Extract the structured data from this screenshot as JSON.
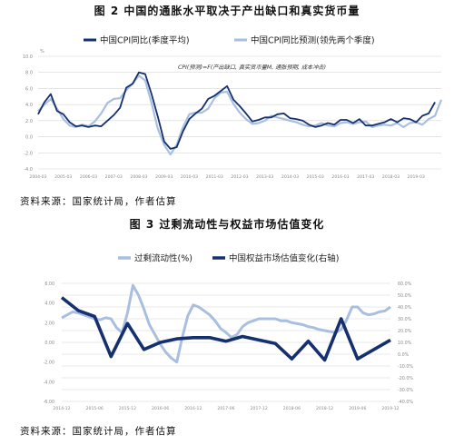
{
  "figure1": {
    "title": "图 2  中国的通胀水平取决于产出缺口和真实货币量",
    "source": "资料来源：国家统计局，作者估算",
    "annotation": "CPI(预测)=F(产出缺口, 真实货币量M, 通胀预期, 成本冲击)",
    "unit_label": "%"
  },
  "figure2": {
    "title": "图 3  过剩流动性与权益市场估值变化",
    "source": "资料来源：国家统计局，作者估算"
  },
  "colors": {
    "dark_navy": "#15306e",
    "light_blue": "#a9bfe0",
    "grid": "#d6d6d6"
  },
  "chart_data": [
    {
      "type": "line",
      "title": "",
      "xlabel": "",
      "ylabel": "%",
      "ylim": [
        -4,
        10
      ],
      "yticks": [
        "10.0",
        "8.0",
        "6.0",
        "4.0",
        "2.0",
        "0.0",
        "-2.0",
        "-4.0"
      ],
      "x_tick_labels": [
        "2004-03",
        "2005-03",
        "2006-03",
        "2007-03",
        "2008-03",
        "2009-03",
        "2010-03",
        "2011-03",
        "2012-03",
        "2013-03",
        "2014-03",
        "2015-03",
        "2016-03",
        "2017-03",
        "2018-03",
        "2019-03"
      ],
      "x_start": 2004.0,
      "grid": true,
      "legend_position": "top",
      "series": [
        {
          "name": "中国CPI同比(季度平均)",
          "color": "#15306e",
          "x": [
            2004.0,
            2004.25,
            2004.5,
            2004.75,
            2005.0,
            2005.25,
            2005.5,
            2005.75,
            2006.0,
            2006.25,
            2006.5,
            2006.75,
            2007.0,
            2007.25,
            2007.5,
            2007.75,
            2008.0,
            2008.25,
            2008.5,
            2008.75,
            2009.0,
            2009.25,
            2009.5,
            2009.75,
            2010.0,
            2010.25,
            2010.5,
            2010.75,
            2011.0,
            2011.25,
            2011.5,
            2011.75,
            2012.0,
            2012.25,
            2012.5,
            2012.75,
            2013.0,
            2013.25,
            2013.5,
            2013.75,
            2014.0,
            2014.25,
            2014.5,
            2014.75,
            2015.0,
            2015.25,
            2015.5,
            2015.75,
            2016.0,
            2016.25,
            2016.5,
            2016.75,
            2017.0,
            2017.25,
            2017.5,
            2017.75,
            2018.0,
            2018.25,
            2018.5,
            2018.75,
            2019.0,
            2019.25,
            2019.5,
            2019.75
          ],
          "values": [
            2.8,
            4.3,
            5.3,
            3.2,
            2.8,
            1.8,
            1.3,
            1.4,
            1.2,
            1.4,
            1.3,
            2.0,
            2.7,
            3.6,
            6.1,
            6.6,
            8.0,
            7.8,
            5.3,
            2.5,
            -0.6,
            -1.5,
            -1.3,
            0.7,
            2.2,
            2.9,
            3.5,
            4.7,
            5.1,
            5.7,
            6.3,
            4.6,
            3.8,
            2.9,
            1.9,
            2.1,
            2.4,
            2.4,
            2.8,
            2.9,
            2.3,
            2.2,
            2.0,
            1.5,
            1.2,
            1.4,
            1.7,
            1.5,
            2.1,
            2.1,
            1.7,
            2.2,
            1.4,
            1.4,
            1.6,
            1.8,
            2.2,
            1.8,
            2.3,
            2.2,
            1.8,
            2.6,
            2.9,
            4.3
          ]
        },
        {
          "name": "中国CPI同比预测(领先两个季度)",
          "color": "#a9bfe0",
          "x": [
            2004.0,
            2004.25,
            2004.5,
            2004.75,
            2005.0,
            2005.25,
            2005.5,
            2005.75,
            2006.0,
            2006.25,
            2006.5,
            2006.75,
            2007.0,
            2007.25,
            2007.5,
            2007.75,
            2008.0,
            2008.25,
            2008.5,
            2008.75,
            2009.0,
            2009.25,
            2009.5,
            2009.75,
            2010.0,
            2010.25,
            2010.5,
            2010.75,
            2011.0,
            2011.25,
            2011.5,
            2011.75,
            2012.0,
            2012.25,
            2012.5,
            2012.75,
            2013.0,
            2013.25,
            2013.5,
            2013.75,
            2014.0,
            2014.25,
            2014.5,
            2014.75,
            2015.0,
            2015.25,
            2015.5,
            2015.75,
            2016.0,
            2016.25,
            2016.5,
            2016.75,
            2017.0,
            2017.25,
            2017.5,
            2017.75,
            2018.0,
            2018.25,
            2018.5,
            2018.75,
            2019.0,
            2019.25,
            2019.5,
            2019.75,
            2020.0
          ],
          "values": [
            3.2,
            4.0,
            4.7,
            3.5,
            2.2,
            1.4,
            1.2,
            1.5,
            1.3,
            1.9,
            2.9,
            4.2,
            4.7,
            4.8,
            5.8,
            6.6,
            7.6,
            7.0,
            4.2,
            1.0,
            -1.0,
            -2.2,
            -1.0,
            1.2,
            2.8,
            3.0,
            3.0,
            3.5,
            4.8,
            5.5,
            5.6,
            4.1,
            3.0,
            2.2,
            1.6,
            1.7,
            2.0,
            2.6,
            2.4,
            2.2,
            2.0,
            1.8,
            1.5,
            1.3,
            1.4,
            1.7,
            1.4,
            1.3,
            1.7,
            1.8,
            1.6,
            1.8,
            1.9,
            1.2,
            1.4,
            1.5,
            1.4,
            1.7,
            1.2,
            1.7,
            1.8,
            1.5,
            2.2,
            2.6,
            4.6
          ]
        }
      ]
    },
    {
      "type": "line",
      "title": "",
      "xlabel": "",
      "ylabel": "",
      "ylim": [
        -6,
        6
      ],
      "ylim_right": [
        -40,
        60
      ],
      "yticks": [
        "6.00",
        "4.00",
        "2.00",
        "0.00",
        "-2.00",
        "-4.00",
        "-6.00"
      ],
      "yticks_right": [
        "60.0%",
        "50.0%",
        "40.0%",
        "30.0%",
        "20.0%",
        "10.0%",
        "0.0%",
        "-10.0%",
        "-20.0%",
        "-30.0%",
        "-40.0%"
      ],
      "x_tick_labels": [
        "2014-12",
        "2015-06",
        "2015-12",
        "2016-06",
        "2016-12",
        "2017-06",
        "2017-12",
        "2018-06",
        "2018-12",
        "2019-06",
        "2019-12"
      ],
      "grid": true,
      "legend_position": "top",
      "series": [
        {
          "name": "过剩流动性(%)",
          "color": "#a9bfe0",
          "axis": "left",
          "x": [
            0,
            1,
            2,
            3,
            4,
            5,
            6,
            7,
            8,
            9,
            10,
            11,
            12,
            13,
            14,
            15,
            16,
            17,
            18,
            19,
            20,
            21,
            22,
            23,
            24,
            25,
            26,
            27,
            28,
            29,
            30,
            31,
            32,
            33,
            34,
            35,
            36,
            37,
            38,
            39,
            40,
            41,
            42,
            43,
            44,
            45,
            46,
            47,
            48,
            49,
            50,
            51,
            52,
            53,
            54,
            55,
            56,
            57,
            58,
            59,
            60
          ],
          "values": [
            2.5,
            2.8,
            3.1,
            3.0,
            2.8,
            2.6,
            2.4,
            2.3,
            2.5,
            2.4,
            1.5,
            1.0,
            3.0,
            5.8,
            4.8,
            3.4,
            1.8,
            0.8,
            -0.2,
            -1.0,
            -1.6,
            -2.0,
            0.5,
            2.7,
            3.8,
            3.6,
            3.2,
            2.8,
            2.2,
            1.4,
            1.0,
            0.5,
            0.8,
            1.6,
            2.0,
            2.2,
            2.4,
            2.4,
            2.4,
            2.4,
            2.2,
            2.2,
            2.0,
            1.9,
            1.8,
            1.6,
            1.5,
            1.3,
            1.2,
            1.1,
            1.0,
            1.3,
            2.3,
            3.6,
            3.6,
            3.0,
            2.8,
            2.9,
            3.1,
            3.2,
            3.6
          ]
        },
        {
          "name": "中国权益市场估值变化(右轴)",
          "color": "#15306e",
          "axis": "right",
          "x": [
            0,
            3,
            6,
            9,
            12,
            15,
            18,
            21,
            24,
            27,
            30,
            33,
            36,
            39,
            42,
            45,
            48,
            51,
            54,
            57,
            60
          ],
          "values": [
            48,
            37,
            32,
            -2,
            26,
            4,
            10,
            13,
            14,
            14,
            11,
            15,
            12,
            9,
            -4,
            11,
            -5,
            30,
            -4,
            4,
            12
          ]
        }
      ]
    }
  ]
}
